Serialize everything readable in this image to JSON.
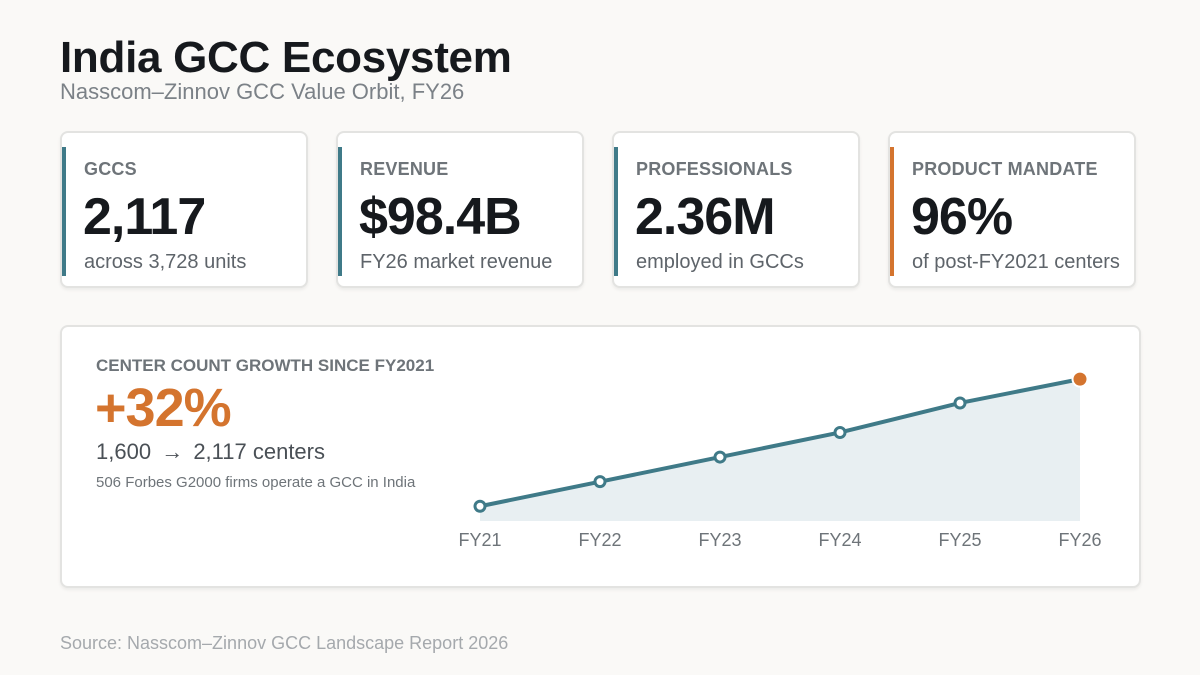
{
  "header": {
    "title": "India GCC Ecosystem",
    "subtitle": "Nasscom–Zinnov GCC Value Orbit, FY26"
  },
  "kpis": [
    {
      "label": "GCCS",
      "value": "2,117",
      "desc": "across 3,728 units",
      "accent": "#3f7a88"
    },
    {
      "label": "REVENUE",
      "value": "$98.4B",
      "desc": "FY26 market revenue",
      "accent": "#3f7a88"
    },
    {
      "label": "PROFESSIONALS",
      "value": "2.36M",
      "desc": "employed in GCCs",
      "accent": "#3f7a88"
    },
    {
      "label": "PRODUCT MANDATE",
      "value": "96%",
      "desc": "of post-FY2021 centers",
      "accent": "#d4742e"
    }
  ],
  "growth": {
    "label": "CENTER COUNT GROWTH SINCE FY2021",
    "value": "+32%",
    "from": "1,600",
    "arrow": "→",
    "to": "2,117 centers",
    "note": "506 Forbes G2000 firms operate a GCC in India"
  },
  "chart_data": {
    "type": "area",
    "categories": [
      "FY21",
      "FY22",
      "FY23",
      "FY24",
      "FY25",
      "FY26"
    ],
    "values": [
      1600,
      1700,
      1800,
      1900,
      2020,
      2117
    ],
    "ylim": [
      1540,
      2150
    ],
    "grid": false,
    "line_color": "#3f7a88",
    "fill_color": "#e8eff2",
    "highlight_color": "#d4742e"
  },
  "footer": {
    "source": "Source: Nasscom–Zinnov GCC Landscape Report 2026"
  }
}
